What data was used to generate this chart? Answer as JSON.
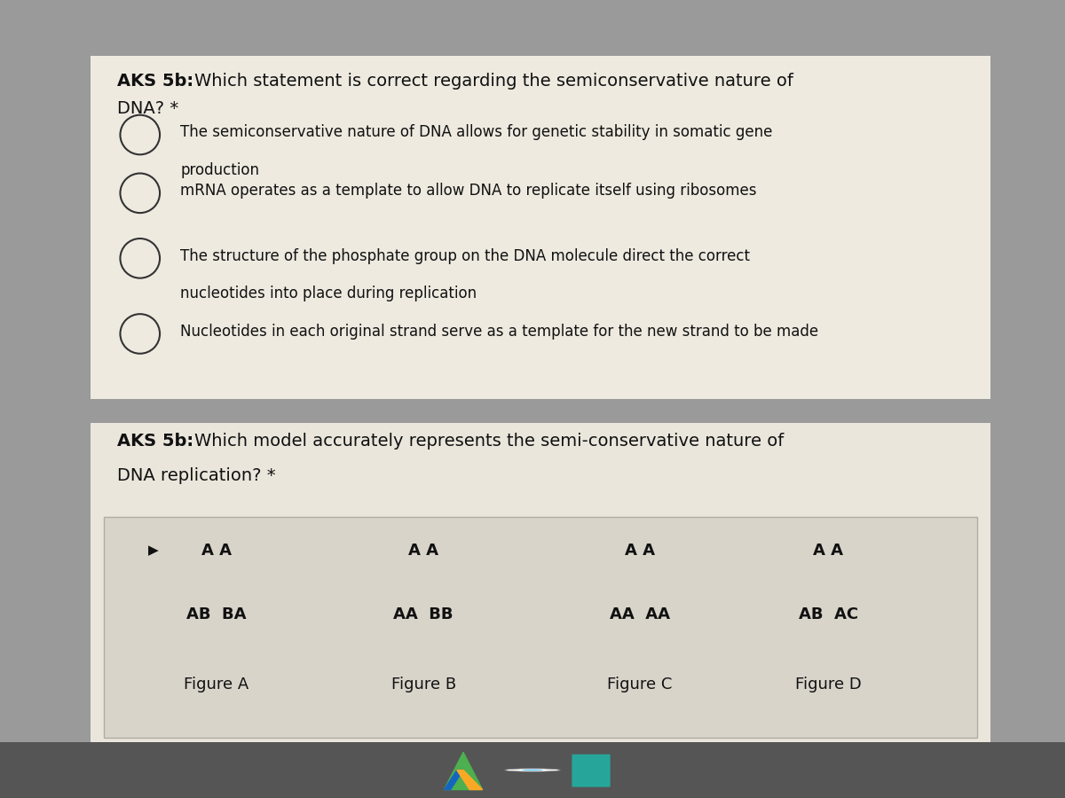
{
  "bg_outer": "#9a9a9a",
  "bg_screen": "#c8c8c8",
  "card1_bg": "#eeeae0",
  "card2_bg": "#eae6dc",
  "table_bg": "#d8d4ca",
  "table_border": "#b0aca2",
  "text_dark": "#111111",
  "circle_color": "#333333",
  "title1_line1": "AKS 5b: Which statement is correct regarding the semiconservative nature of",
  "title1_line2": "DNA? *",
  "title1_bold": "AKS 5b: ",
  "title1_rest": "Which statement is correct regarding the semiconservative nature of",
  "options": [
    [
      "The semiconservative nature of DNA allows for genetic stability in somatic gene",
      "production"
    ],
    [
      "mRNA operates as a template to allow DNA to replicate itself using ribosomes"
    ],
    [
      "The structure of the phosphate group on the DNA molecule direct the correct",
      "nucleotides into place during replication"
    ],
    [
      "Nucleotides in each original strand serve as a template for the new strand to be made"
    ]
  ],
  "title2_bold": "AKS 5b: ",
  "title2_rest": "Which model accurately represents the semi-conservative nature of",
  "title2_line2": "DNA replication? *",
  "fig_top": [
    "A A",
    "A A",
    "A A",
    "A A"
  ],
  "fig_bottom": [
    "AB  BA",
    "AA  BB",
    "AA  AA",
    "AB  AC"
  ],
  "fig_labels": [
    "Figure A",
    "Figure B",
    "Figure C",
    "Figure D"
  ],
  "taskbar_bg": "#4a4a4a",
  "font_size_title": 14,
  "font_size_option": 12,
  "font_size_fig": 13,
  "font_size_figlabel": 13
}
